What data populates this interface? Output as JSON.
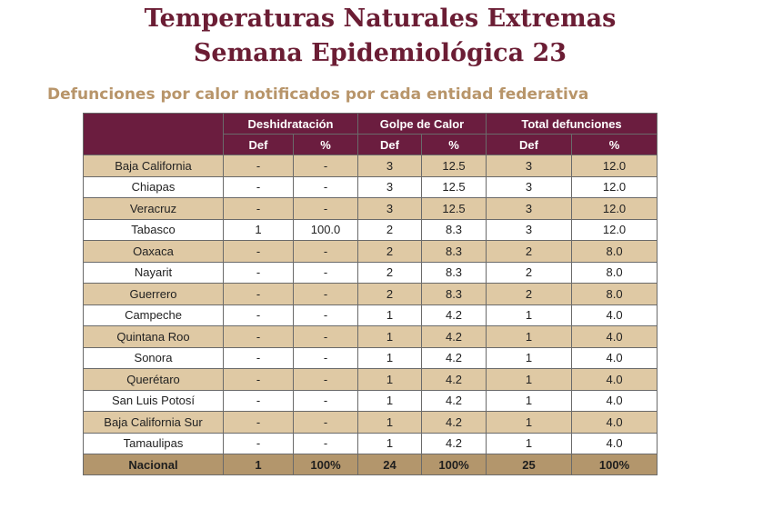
{
  "title_line1": "Temperaturas Naturales Extremas",
  "title_line2": "Semana Epidemiológica 23",
  "subtitle": "Defunciones por calor notificados por cada entidad federativa",
  "groups": {
    "dehydration": "Deshidratación",
    "heatstroke": "Golpe de Calor",
    "total": "Total defunciones"
  },
  "subheaders": {
    "def": "Def",
    "pct": "%"
  },
  "rows": [
    {
      "state": "Baja California",
      "deh_def": "-",
      "deh_pct": "-",
      "gc_def": "3",
      "gc_pct": "12.5",
      "tot_def": "3",
      "tot_pct": "12.0"
    },
    {
      "state": "Chiapas",
      "deh_def": "-",
      "deh_pct": "-",
      "gc_def": "3",
      "gc_pct": "12.5",
      "tot_def": "3",
      "tot_pct": "12.0"
    },
    {
      "state": "Veracruz",
      "deh_def": "-",
      "deh_pct": "-",
      "gc_def": "3",
      "gc_pct": "12.5",
      "tot_def": "3",
      "tot_pct": "12.0"
    },
    {
      "state": "Tabasco",
      "deh_def": "1",
      "deh_pct": "100.0",
      "gc_def": "2",
      "gc_pct": "8.3",
      "tot_def": "3",
      "tot_pct": "12.0"
    },
    {
      "state": "Oaxaca",
      "deh_def": "-",
      "deh_pct": "-",
      "gc_def": "2",
      "gc_pct": "8.3",
      "tot_def": "2",
      "tot_pct": "8.0"
    },
    {
      "state": "Nayarit",
      "deh_def": "-",
      "deh_pct": "-",
      "gc_def": "2",
      "gc_pct": "8.3",
      "tot_def": "2",
      "tot_pct": "8.0"
    },
    {
      "state": "Guerrero",
      "deh_def": "-",
      "deh_pct": "-",
      "gc_def": "2",
      "gc_pct": "8.3",
      "tot_def": "2",
      "tot_pct": "8.0"
    },
    {
      "state": "Campeche",
      "deh_def": "-",
      "deh_pct": "-",
      "gc_def": "1",
      "gc_pct": "4.2",
      "tot_def": "1",
      "tot_pct": "4.0"
    },
    {
      "state": "Quintana Roo",
      "deh_def": "-",
      "deh_pct": "-",
      "gc_def": "1",
      "gc_pct": "4.2",
      "tot_def": "1",
      "tot_pct": "4.0"
    },
    {
      "state": "Sonora",
      "deh_def": "-",
      "deh_pct": "-",
      "gc_def": "1",
      "gc_pct": "4.2",
      "tot_def": "1",
      "tot_pct": "4.0"
    },
    {
      "state": "Querétaro",
      "deh_def": "-",
      "deh_pct": "-",
      "gc_def": "1",
      "gc_pct": "4.2",
      "tot_def": "1",
      "tot_pct": "4.0"
    },
    {
      "state": "San Luis Potosí",
      "deh_def": "-",
      "deh_pct": "-",
      "gc_def": "1",
      "gc_pct": "4.2",
      "tot_def": "1",
      "tot_pct": "4.0"
    },
    {
      "state": "Baja California Sur",
      "deh_def": "-",
      "deh_pct": "-",
      "gc_def": "1",
      "gc_pct": "4.2",
      "tot_def": "1",
      "tot_pct": "4.0"
    },
    {
      "state": "Tamaulipas",
      "deh_def": "-",
      "deh_pct": "-",
      "gc_def": "1",
      "gc_pct": "4.2",
      "tot_def": "1",
      "tot_pct": "4.0"
    }
  ],
  "total_row": {
    "state": "Nacional",
    "deh_def": "1",
    "deh_pct": "100%",
    "gc_def": "24",
    "gc_pct": "100%",
    "tot_def": "25",
    "tot_pct": "100%"
  },
  "colors": {
    "title": "#6b1d34",
    "subtitle": "#b8956a",
    "header_bg": "#6b1d3f",
    "alt_row_bg": "#dfc9a4",
    "total_row_bg": "#b3966c"
  }
}
